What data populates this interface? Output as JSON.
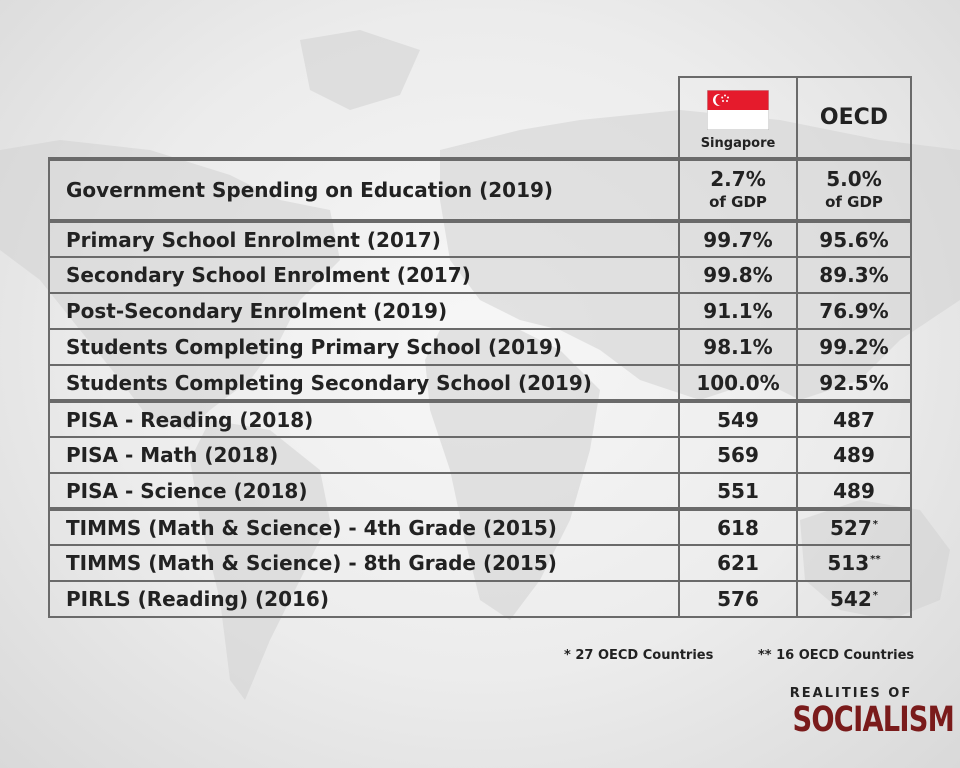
{
  "colors": {
    "flag_red": "#e51b2c",
    "brand_red": "#7a1b1b",
    "table_border": "#6a6a6a"
  },
  "header": {
    "country": "Singapore",
    "country_flag_icon": "singapore-flag-icon",
    "benchmark": "OECD"
  },
  "rows": [
    {
      "label": "Government Spending on Education (2019)",
      "singapore": "2.7%",
      "singapore_unit": "of GDP",
      "oecd": "5.0%",
      "oecd_unit": "of GDP"
    },
    {
      "label": "Primary School Enrolment (2017)",
      "singapore": "99.7%",
      "oecd": "95.6%"
    },
    {
      "label": "Secondary School Enrolment (2017)",
      "singapore": "99.8%",
      "oecd": "89.3%"
    },
    {
      "label": "Post-Secondary Enrolment (2019)",
      "singapore": "91.1%",
      "oecd": "76.9%"
    },
    {
      "label": "Students Completing Primary School (2019)",
      "singapore": "98.1%",
      "oecd": "99.2%"
    },
    {
      "label": "Students Completing Secondary School (2019)",
      "singapore": "100.0%",
      "oecd": "92.5%"
    },
    {
      "label": "PISA - Reading (2018)",
      "singapore": "549",
      "oecd": "487"
    },
    {
      "label": "PISA - Math (2018)",
      "singapore": "569",
      "oecd": "489"
    },
    {
      "label": "PISA - Science (2018)",
      "singapore": "551",
      "oecd": "489"
    },
    {
      "label": "TIMMS (Math & Science) - 4th Grade (2015)",
      "singapore": "618",
      "oecd": "527",
      "oecd_mark": "*"
    },
    {
      "label": "TIMMS (Math & Science) - 8th Grade (2015)",
      "singapore": "621",
      "oecd": "513",
      "oecd_mark": "**"
    },
    {
      "label": "PIRLS (Reading) (2016)",
      "singapore": "576",
      "oecd": "542",
      "oecd_mark": "*"
    }
  ],
  "footnotes": {
    "single_star": "* 27 OECD Countries",
    "double_star": "** 16 OECD Countries"
  },
  "brand": {
    "top": "REALITIES OF",
    "main": "SOCIALISM"
  },
  "chart_data": {
    "type": "table",
    "columns": [
      "",
      "Singapore",
      "OECD"
    ],
    "rows": [
      [
        "Government Spending on Education (2019)",
        "2.7% of GDP",
        "5.0% of GDP"
      ],
      [
        "Primary School Enrolment (2017)",
        "99.7%",
        "95.6%"
      ],
      [
        "Secondary School Enrolment (2017)",
        "99.8%",
        "89.3%"
      ],
      [
        "Post-Secondary Enrolment (2019)",
        "91.1%",
        "76.9%"
      ],
      [
        "Students Completing Primary School (2019)",
        "98.1%",
        "99.2%"
      ],
      [
        "Students Completing Secondary School (2019)",
        "100.0%",
        "92.5%"
      ],
      [
        "PISA - Reading (2018)",
        "549",
        "487"
      ],
      [
        "PISA - Math (2018)",
        "569",
        "489"
      ],
      [
        "PISA - Science (2018)",
        "551",
        "489"
      ],
      [
        "TIMMS (Math & Science) - 4th Grade (2015)",
        "618",
        "527*"
      ],
      [
        "TIMMS (Math & Science) - 8th Grade (2015)",
        "621",
        "513**"
      ],
      [
        "PIRLS (Reading) (2016)",
        "576",
        "542*"
      ]
    ]
  }
}
